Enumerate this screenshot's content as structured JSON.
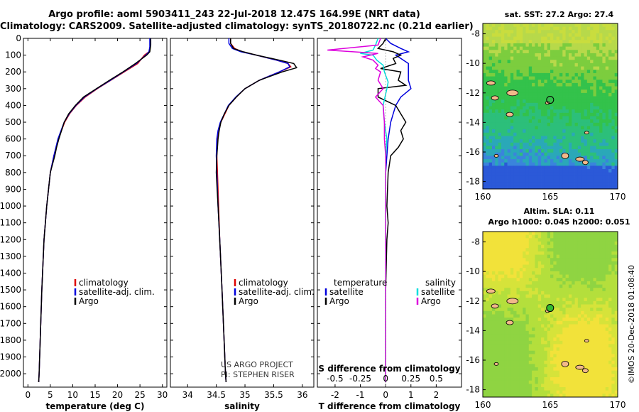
{
  "header": {
    "line1": "Argo profile: aoml 5903411_243 22-Jul-2018 12.47S 164.99E (NRT data)",
    "line2": "Climatology: CARS2009. Satellite-adjusted climatology: synTS_20180722.nc (0.21d earlier)"
  },
  "colors": {
    "climatology": "#dd0000",
    "satellite": "#0000dd",
    "argo": "#000000",
    "sal_satellite": "#00dddd",
    "sal_argo": "#dd00dd"
  },
  "chart_data": [
    {
      "type": "line",
      "xlabel": "temperature (deg C)",
      "ylabel": "",
      "xlim": [
        -1,
        31
      ],
      "ylim": [
        2080,
        0
      ],
      "xticks": [
        0,
        5,
        10,
        15,
        20,
        25,
        30
      ],
      "yticks": [
        0,
        100,
        200,
        300,
        400,
        500,
        600,
        700,
        800,
        900,
        1000,
        1100,
        1200,
        1300,
        1400,
        1500,
        1600,
        1700,
        1800,
        1900,
        2000
      ],
      "legend": [
        "climatology",
        "satellite-adj. clim.",
        "Argo"
      ],
      "series": [
        {
          "name": "climatology",
          "color": "climatology",
          "y": [
            0,
            50,
            80,
            100,
            150,
            200,
            250,
            300,
            350,
            400,
            450,
            500,
            600,
            700,
            800,
            1000,
            1200,
            1500,
            2000,
            2050
          ],
          "x": [
            27.3,
            27.3,
            27.0,
            26.0,
            24.5,
            21.5,
            18.5,
            15.5,
            12.8,
            10.8,
            9.3,
            8.2,
            6.8,
            5.8,
            5.0,
            4.2,
            3.6,
            3.1,
            2.5,
            2.4
          ]
        },
        {
          "name": "satellite-adj. clim.",
          "color": "satellite",
          "y": [
            0,
            50,
            80,
            100,
            150,
            200,
            250,
            300,
            350,
            400,
            450,
            500,
            600,
            700,
            800,
            1000,
            1200,
            1500,
            2000,
            2050
          ],
          "x": [
            27.2,
            27.2,
            27.0,
            26.3,
            24.2,
            21.3,
            18.4,
            15.4,
            12.6,
            10.7,
            9.2,
            8.1,
            6.7,
            5.8,
            5.0,
            4.2,
            3.6,
            3.1,
            2.5,
            2.4
          ]
        },
        {
          "name": "Argo",
          "color": "argo",
          "y": [
            0,
            40,
            80,
            100,
            150,
            200,
            250,
            300,
            350,
            400,
            450,
            500,
            600,
            650,
            700,
            800,
            1000,
            1200,
            1500,
            2000,
            2050
          ],
          "x": [
            27.4,
            27.4,
            27.2,
            26.5,
            24.0,
            21.2,
            18.2,
            15.3,
            12.4,
            10.6,
            9.1,
            8.1,
            6.9,
            6.4,
            6.0,
            5.0,
            4.2,
            3.6,
            3.1,
            2.5,
            2.4
          ]
        }
      ]
    },
    {
      "type": "line",
      "xlabel": "salinity",
      "xlim": [
        33.7,
        36.2
      ],
      "ylim": [
        2080,
        0
      ],
      "xticks": [
        34,
        34.5,
        35,
        35.5,
        36
      ],
      "xtick_labels": [
        "34",
        "34.5",
        "35",
        "35.5",
        "36"
      ],
      "legend": [
        "climatology",
        "satellite-adj. clim.",
        "Argo"
      ],
      "annotation": [
        "US ARGO PROJECT",
        "PI: STEPHEN RISER"
      ],
      "series": [
        {
          "name": "climatology",
          "color": "climatology",
          "y": [
            0,
            30,
            60,
            80,
            100,
            130,
            150,
            170,
            200,
            250,
            300,
            350,
            400,
            450,
            500,
            550,
            600,
            700,
            800,
            1000,
            1200,
            1500,
            2000,
            2050
          ],
          "x": [
            34.75,
            34.75,
            34.82,
            34.95,
            35.2,
            35.55,
            35.75,
            35.8,
            35.6,
            35.25,
            35.0,
            34.85,
            34.72,
            34.65,
            34.58,
            34.54,
            34.52,
            34.51,
            34.52,
            34.54,
            34.56,
            34.6,
            34.66,
            34.67
          ]
        },
        {
          "name": "satellite-adj. clim.",
          "color": "satellite",
          "y": [
            0,
            30,
            60,
            80,
            100,
            130,
            150,
            170,
            200,
            250,
            300,
            350,
            400,
            450,
            500,
            550,
            600,
            700,
            800,
            1000,
            1200,
            1500,
            2000,
            2050
          ],
          "x": [
            34.72,
            34.72,
            34.78,
            34.93,
            35.2,
            35.55,
            35.75,
            35.78,
            35.6,
            35.25,
            35.0,
            34.84,
            34.71,
            34.64,
            34.57,
            34.53,
            34.51,
            34.5,
            34.51,
            34.53,
            34.56,
            34.6,
            34.66,
            34.67
          ]
        },
        {
          "name": "Argo",
          "color": "argo",
          "y": [
            0,
            30,
            60,
            80,
            100,
            130,
            150,
            175,
            200,
            250,
            300,
            350,
            400,
            450,
            500,
            550,
            600,
            650,
            700,
            800,
            1000,
            1200,
            1500,
            2000,
            2050
          ],
          "x": [
            34.75,
            34.75,
            34.8,
            34.97,
            35.2,
            35.6,
            35.85,
            35.9,
            35.65,
            35.25,
            35.0,
            34.85,
            34.72,
            34.64,
            34.58,
            34.55,
            34.53,
            34.52,
            34.51,
            34.5,
            34.53,
            34.56,
            34.6,
            34.66,
            34.67
          ]
        }
      ]
    },
    {
      "type": "line",
      "xlabel": "T difference from climatology",
      "xlabel2": "S difference from climatology",
      "xlim": [
        -2.7,
        3.0
      ],
      "ylim": [
        2080,
        0
      ],
      "xticks": [
        -2,
        -1,
        0,
        1,
        2
      ],
      "xticks_S": [
        -0.5,
        -0.25,
        0,
        0.25,
        0.5
      ],
      "xtick_labels_S": [
        "-0.5",
        "-0.25",
        "0",
        "0.25",
        "0.5"
      ],
      "legend_left_title": "temperature",
      "legend_right_title": "salinity",
      "legend_left": [
        "satellite",
        "Argo"
      ],
      "legend_right": [
        "satellite",
        "Argo"
      ],
      "series": [
        {
          "name": "satellite",
          "color": "satellite",
          "y": [
            0,
            30,
            60,
            80,
            100,
            120,
            150,
            200,
            250,
            300,
            350,
            400,
            450,
            500,
            600,
            700,
            800,
            1000,
            1500,
            2000,
            2050
          ],
          "x": [
            0,
            0.2,
            0.6,
            0.9,
            0.4,
            0.6,
            0.9,
            0.9,
            0.9,
            1.0,
            0.6,
            0.4,
            0.3,
            0.2,
            0.1,
            0.05,
            0,
            0,
            0,
            0,
            0
          ]
        },
        {
          "name": "Argo",
          "color": "argo",
          "y": [
            0,
            30,
            60,
            80,
            100,
            120,
            150,
            180,
            200,
            250,
            280,
            300,
            350,
            400,
            450,
            500,
            550,
            600,
            650,
            700,
            800,
            1000,
            1100,
            1200,
            1500,
            2000,
            2050
          ],
          "x": [
            0,
            -0.1,
            -0.3,
            0.3,
            0.6,
            0.3,
            0.4,
            -0.2,
            0.6,
            0.5,
            0.8,
            -0.3,
            -0.3,
            0.4,
            0.6,
            0.8,
            0.6,
            0.7,
            0.5,
            0.2,
            0.1,
            0.05,
            0.1,
            0.05,
            0,
            0,
            0
          ]
        },
        {
          "name": "sal satellite",
          "color": "sal_satellite",
          "y": [
            0,
            40,
            70,
            90,
            100,
            130,
            160,
            200,
            260,
            300,
            400,
            500,
            600,
            700,
            800,
            1000,
            1500,
            2000,
            2050
          ],
          "x": [
            -0.3,
            -0.4,
            -0.5,
            -1.0,
            -0.5,
            -0.35,
            -0.1,
            -0.05,
            0.1,
            0.05,
            -0.1,
            -0.05,
            0.05,
            0,
            0,
            0,
            0,
            0,
            0
          ]
        },
        {
          "name": "sal Argo",
          "color": "sal_argo",
          "y": [
            0,
            40,
            70,
            90,
            100,
            110,
            130,
            160,
            180,
            200,
            250,
            300,
            350,
            400,
            500,
            600,
            700,
            800,
            1000,
            1500,
            2000,
            2050
          ],
          "x": [
            -0.2,
            -0.3,
            -2.3,
            -0.3,
            -0.6,
            -0.9,
            -0.5,
            -0.3,
            -0.4,
            -0.2,
            -0.3,
            -0.1,
            -0.4,
            -0.1,
            -0.05,
            -0.05,
            0,
            0,
            0,
            0,
            0,
            0
          ]
        }
      ]
    }
  ],
  "maps": [
    {
      "title": "sat. SST: 27.2 Argo: 27.4",
      "variable": "SST",
      "lon_range": [
        160,
        170
      ],
      "lat_range": [
        -18.5,
        -7.3
      ],
      "xticks": [
        160,
        165,
        170
      ],
      "yticks": [
        -8,
        -10,
        -12,
        -14,
        -16,
        -18
      ],
      "float_position": {
        "lon": 164.99,
        "lat": -12.47
      },
      "float_marker": "open circle"
    },
    {
      "title1": "Altim. SLA: 0.11",
      "title2": "Argo h1000: 0.045 h2000: 0.051",
      "variable": "SLA",
      "lon_range": [
        160,
        170
      ],
      "lat_range": [
        -18.5,
        -7.3
      ],
      "xticks": [
        160,
        165,
        170
      ],
      "yticks": [
        -8,
        -10,
        -12,
        -14,
        -16,
        -18
      ],
      "float_position": {
        "lon": 164.99,
        "lat": -12.47
      },
      "float_marker": "filled green circle"
    }
  ],
  "stamp": "©IMOS 20-Dec-2018 01:08:40"
}
